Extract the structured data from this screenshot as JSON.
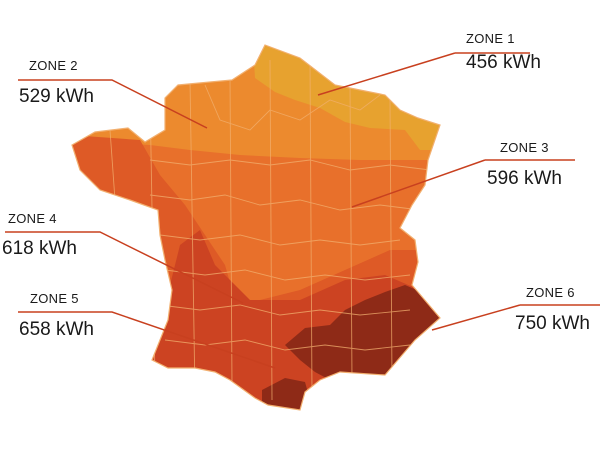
{
  "colors": {
    "zone1": "#E7A22F",
    "zone2": "#EC8A2E",
    "zone3": "#E8702B",
    "zone4": "#DE5A26",
    "zone5": "#CC4322",
    "zone6": "#8E2A17",
    "leader": "#C8401F",
    "border": "#F2B070"
  },
  "zones": [
    {
      "id": "zone1",
      "name": "ZONE 1",
      "value": "456 kWh"
    },
    {
      "id": "zone2",
      "name": "ZONE 2",
      "value": "529 kWh"
    },
    {
      "id": "zone3",
      "name": "ZONE 3",
      "value": "596 kWh"
    },
    {
      "id": "zone4",
      "name": "ZONE 4",
      "value": "618 kWh"
    },
    {
      "id": "zone5",
      "name": "ZONE 5",
      "value": "658 kWh"
    },
    {
      "id": "zone6",
      "name": "ZONE 6",
      "value": "750 kWh"
    }
  ]
}
